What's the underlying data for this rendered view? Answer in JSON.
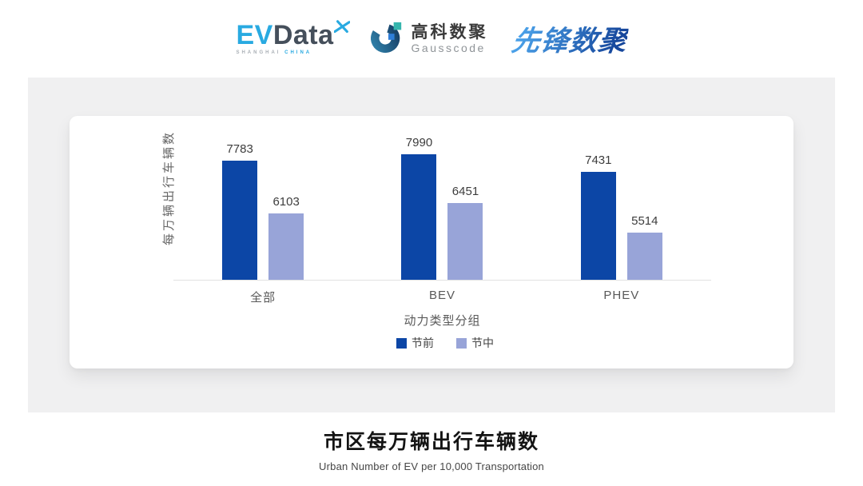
{
  "header": {
    "evdata_logo": {
      "ev": "EV",
      "data": "Data",
      "sub_shanghai": "SHANGHAI",
      "sub_china": "CHINA"
    },
    "gausscode_logo": {
      "cn_name": "高科数聚",
      "en_name": "Gausscode"
    },
    "xianfeng_logo": {
      "name": "先锋数聚"
    }
  },
  "chart_data": {
    "type": "bar",
    "categories": [
      "全部",
      "BEV",
      "PHEV"
    ],
    "series": [
      {
        "name": "节前",
        "color": "#0c46a6",
        "values": [
          7783,
          7990,
          7431
        ]
      },
      {
        "name": "节中",
        "color": "#98a4d8",
        "values": [
          6103,
          6451,
          5514
        ]
      }
    ],
    "xlabel": "动力类型分组",
    "ylabel": "每万辆出行车辆数",
    "ylim": [
      4000,
      8200
    ],
    "grid": false,
    "legend_position": "bottom",
    "value_labels": true
  },
  "footer": {
    "title": "市区每万辆出行车辆数",
    "subtitle": "Urban Number of EV per 10,000 Transportation"
  },
  "colors": {
    "pre_holiday_bar": "#0c46a6",
    "during_holiday_bar": "#98a4d8",
    "panel_bg": "#f0f0f1",
    "evdata_blue": "#29aae1",
    "evdata_dark": "#454f5b",
    "xianfeng_gradient_start": "#4aa0e8",
    "xianfeng_gradient_end": "#16479c"
  }
}
